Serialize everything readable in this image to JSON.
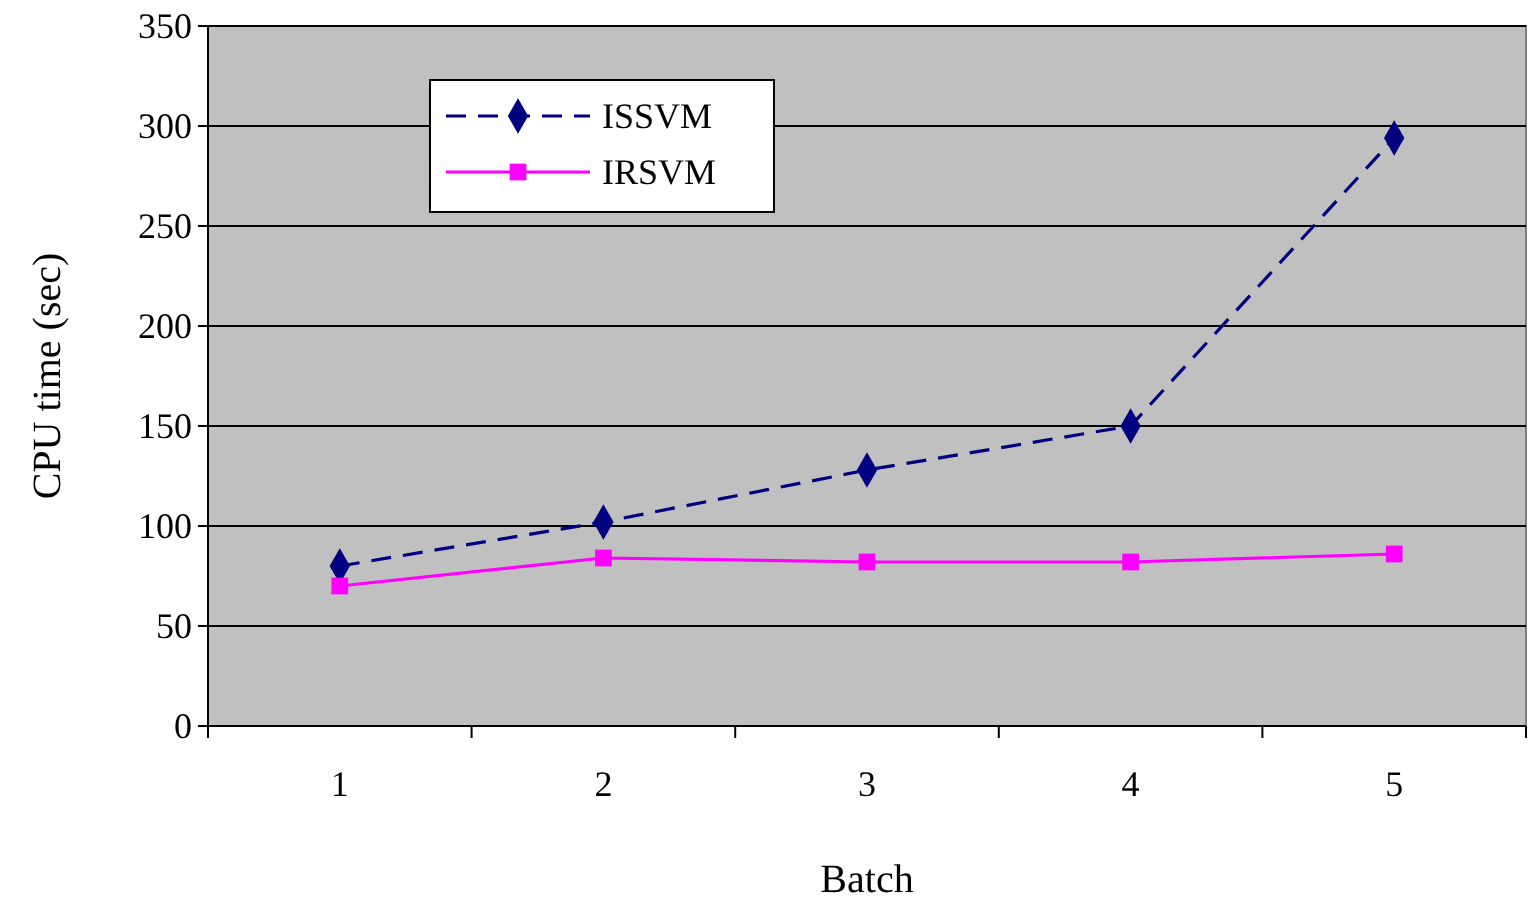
{
  "chart_data": {
    "type": "line",
    "xlabel": "Batch",
    "ylabel": "CPU time (sec)",
    "categories": [
      "1",
      "2",
      "3",
      "4",
      "5"
    ],
    "ylim": [
      0,
      350
    ],
    "yticks": [
      0,
      50,
      100,
      150,
      200,
      250,
      300,
      350
    ],
    "grid": "y",
    "legend": "top left",
    "series": [
      {
        "name": "ISSVM",
        "color": "#000080",
        "marker": "diamond",
        "line_style": "dashed",
        "values": [
          80,
          102,
          128,
          150,
          294
        ]
      },
      {
        "name": "IRSVM",
        "color": "#ff00ff",
        "marker": "square",
        "line_style": "solid",
        "values": [
          70,
          84,
          82,
          82,
          86
        ]
      }
    ]
  }
}
